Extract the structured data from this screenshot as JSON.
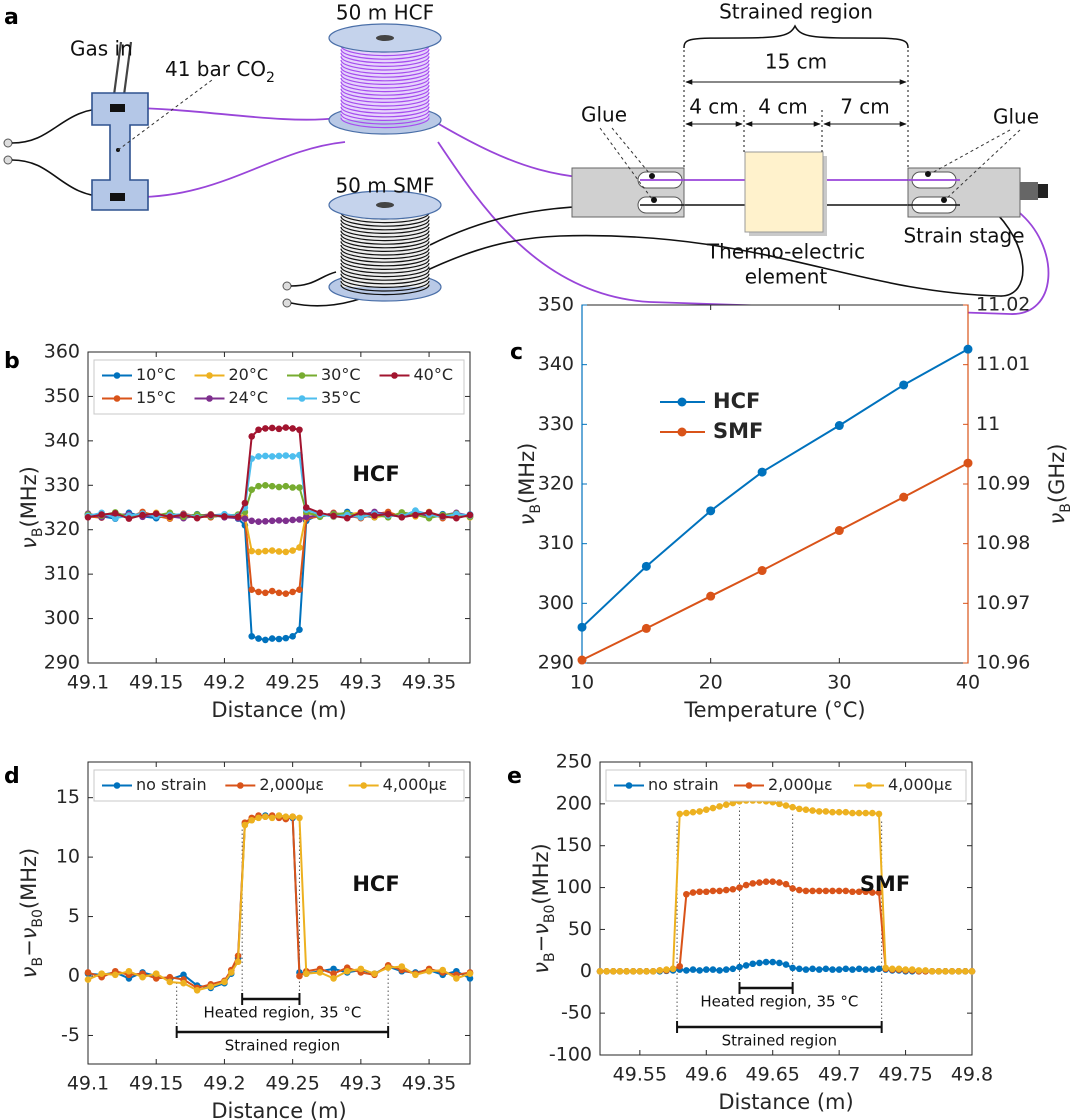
{
  "diagram": {
    "panel": "a",
    "gas_in": "Gas in",
    "pressure": [
      "41 bar CO",
      "2"
    ],
    "hcf_spool": "50 m HCF",
    "smf_spool": "50 m SMF",
    "strained_region": "Strained region",
    "lengths": [
      "15 cm",
      "4 cm",
      "4 cm",
      "7 cm"
    ],
    "glue": [
      "Glue",
      "Glue"
    ],
    "element": [
      "Thermo-electric",
      "element"
    ],
    "stage": "Strain stage"
  },
  "chart_data": [
    {
      "panel": "b",
      "type": "line",
      "x": [
        49.1,
        49.11,
        49.12,
        49.13,
        49.14,
        49.15,
        49.16,
        49.17,
        49.18,
        49.19,
        49.2,
        49.21,
        49.215,
        49.22,
        49.225,
        49.23,
        49.235,
        49.24,
        49.245,
        49.25,
        49.255,
        49.26,
        49.27,
        49.28,
        49.29,
        49.3,
        49.31,
        49.32,
        49.33,
        49.34,
        49.35,
        49.36,
        49.37,
        49.38
      ],
      "series": [
        {
          "name": "10°C",
          "color": "#0072bd",
          "values": [
            323.5,
            323,
            322.5,
            323.8,
            323,
            322.6,
            323.4,
            322.8,
            323.5,
            322.9,
            323.2,
            322.5,
            321,
            296,
            295.5,
            295.2,
            295.5,
            295.4,
            295.6,
            296,
            297.5,
            322,
            323.5,
            323,
            324,
            323.2,
            322.8,
            323.6,
            323.1,
            324.2,
            323,
            323.5,
            322.7,
            323.4
          ]
        },
        {
          "name": "15°C",
          "color": "#d95319",
          "values": [
            323,
            322.7,
            323.5,
            322.8,
            324,
            323.1,
            322.5,
            323.6,
            323,
            322.8,
            323.4,
            323.2,
            322.8,
            306.5,
            306,
            305.8,
            306.2,
            305.8,
            305.6,
            306,
            306.5,
            322.5,
            323,
            323.8,
            323.2,
            322.6,
            323.5,
            324,
            322.9,
            323.3,
            323.8,
            322.6,
            323.2,
            323
          ]
        },
        {
          "name": "20°C",
          "color": "#edb120",
          "values": [
            323.2,
            323.6,
            322.9,
            323.3,
            323,
            323.8,
            322.7,
            323.2,
            323.1,
            323.5,
            322.9,
            323.3,
            323,
            315.2,
            315,
            315.2,
            315.3,
            315.1,
            315,
            315.3,
            316,
            323.5,
            323.6,
            322.9,
            323.4,
            323.9,
            322.8,
            323.2,
            323.5,
            323,
            324,
            322.9,
            323.4,
            322.8
          ]
        },
        {
          "name": "24°C",
          "color": "#7e2f8e",
          "values": [
            323.6,
            322.8,
            323.3,
            323.5,
            322.9,
            323.4,
            323,
            322.6,
            323.2,
            323.4,
            322.8,
            322.6,
            322.5,
            322,
            321.8,
            321.9,
            322,
            322.1,
            322,
            322.2,
            322.3,
            322.9,
            323.2,
            323.6,
            322.7,
            323.3,
            324,
            323.4,
            322.9,
            323.6,
            323.1,
            323.3,
            323.8,
            323.1
          ]
        },
        {
          "name": "30°C",
          "color": "#77ac30",
          "values": [
            323.4,
            323.2,
            323.9,
            322.9,
            323.5,
            323.2,
            323.8,
            322.9,
            323.4,
            323,
            323.2,
            323.4,
            324,
            329,
            329.8,
            330,
            329.8,
            329.6,
            329.8,
            329.5,
            329.5,
            324,
            322.9,
            323.5,
            323.7,
            323,
            323.4,
            322.8,
            323.9,
            323.4,
            322.6,
            323.3,
            323.6,
            322.9
          ]
        },
        {
          "name": "35°C",
          "color": "#4dbeee",
          "values": [
            323.1,
            323.8,
            322.6,
            323.2,
            323.6,
            323,
            323.3,
            323.5,
            322.8,
            323.2,
            323.5,
            323.1,
            325,
            336,
            336.5,
            336.6,
            336.5,
            336.6,
            336.7,
            336.5,
            336.8,
            324.5,
            323.4,
            323,
            323.3,
            322.8,
            323.6,
            323.2,
            323,
            324.3,
            323.4,
            322.9,
            323.5,
            323.2
          ]
        },
        {
          "name": "40°C",
          "color": "#a2142f",
          "values": [
            322.8,
            323.4,
            323.7,
            322.5,
            323.3,
            323.6,
            322.9,
            323.4,
            322.6,
            323.3,
            323,
            322.9,
            326,
            341,
            342.5,
            342.8,
            342.9,
            342.7,
            343,
            342.8,
            342.5,
            325,
            323.8,
            323.1,
            322.6,
            323.9,
            323.2,
            323.5,
            322.8,
            323.3,
            323.9,
            323,
            322.6,
            323.3
          ]
        }
      ],
      "xlim": [
        49.1,
        49.38
      ],
      "xticks": [
        49.1,
        49.15,
        49.2,
        49.25,
        49.3,
        49.35
      ],
      "ylim": [
        290,
        360
      ],
      "yticks": [
        290,
        300,
        310,
        320,
        330,
        340,
        350,
        360
      ],
      "xlabel": "Distance (m)",
      "ylabel": [
        "ν",
        "B",
        "(MHz)"
      ],
      "label": "HCF",
      "legend": "north",
      "legend_columns": 4
    },
    {
      "panel": "c",
      "type": "line",
      "x": [
        10,
        15,
        20,
        24,
        30,
        35,
        40
      ],
      "series": [
        {
          "name": "HCF",
          "color": "#0072bd",
          "values": [
            296,
            306.2,
            315.5,
            322,
            329.8,
            336.6,
            342.6
          ]
        },
        {
          "name": "SMF",
          "color": "#d95319",
          "axis": "y2",
          "values": [
            10.9605,
            10.9658,
            10.9712,
            10.9755,
            10.9822,
            10.9878,
            10.9935
          ]
        }
      ],
      "xlim": [
        10,
        40
      ],
      "xticks": [
        10,
        20,
        30,
        40
      ],
      "ylim": [
        290,
        350
      ],
      "yticks": [
        290,
        300,
        310,
        320,
        330,
        340,
        350
      ],
      "y2lim": [
        10.96,
        11.02
      ],
      "y2ticks": [
        10.96,
        10.97,
        10.98,
        10.99,
        11,
        11.01,
        11.02
      ],
      "xlabel": "Temperature (°C)",
      "ylabel": [
        "ν",
        "B",
        "(MHz)"
      ],
      "y2label": [
        "ν",
        "B",
        "(GHz)"
      ],
      "ycolor": "#0072bd",
      "y2color": "#d95319",
      "legend": "northwest"
    },
    {
      "panel": "d",
      "type": "line",
      "x": [
        49.1,
        49.11,
        49.12,
        49.13,
        49.14,
        49.15,
        49.16,
        49.17,
        49.18,
        49.19,
        49.2,
        49.205,
        49.21,
        49.215,
        49.22,
        49.225,
        49.23,
        49.235,
        49.24,
        49.245,
        49.25,
        49.255,
        49.26,
        49.27,
        49.28,
        49.29,
        49.3,
        49.31,
        49.32,
        49.33,
        49.34,
        49.35,
        49.36,
        49.37,
        49.38
      ],
      "series": [
        {
          "name": "no strain",
          "color": "#0072bd",
          "values": [
            0.2,
            0.1,
            0.3,
            -0.2,
            0.3,
            0,
            -0.3,
            0.1,
            -0.8,
            -1,
            -0.6,
            0.2,
            1.5,
            12.8,
            13.2,
            13.4,
            13.5,
            13.4,
            13.4,
            13.3,
            13.3,
            0.3,
            0.2,
            0.4,
            0.6,
            0.3,
            0.5,
            0.2,
            0.8,
            0.4,
            0.3,
            0.5,
            0.1,
            0.4,
            -0.2
          ]
        },
        {
          "name": "2,000με",
          "color": "#d95319",
          "values": [
            0.3,
            -0.1,
            0.4,
            0.1,
            0.2,
            -0.2,
            -0.1,
            -0.3,
            -1,
            -0.7,
            -0.4,
            0.5,
            1.7,
            12.9,
            13.3,
            13.5,
            13.4,
            13.5,
            13.3,
            13.2,
            13.4,
            0,
            0.4,
            0.6,
            0.2,
            0.7,
            0.3,
            0.1,
            0.9,
            0.5,
            0.2,
            0.6,
            0.3,
            0.1,
            0.3
          ]
        },
        {
          "name": "4,000με",
          "color": "#edb120",
          "values": [
            -0.3,
            0.2,
            0.1,
            0.4,
            -0.1,
            0.2,
            -0.5,
            -0.6,
            -1.2,
            -0.9,
            -0.5,
            0.3,
            1.2,
            12.7,
            13.1,
            13.3,
            13.4,
            13.3,
            13.5,
            13.4,
            13.4,
            13.3,
            0.2,
            0.3,
            -0.2,
            0.4,
            0.6,
            0.2,
            0.7,
            0.8,
            0.1,
            0.4,
            0.5,
            -0.2,
            0.2
          ]
        }
      ],
      "xlim": [
        49.1,
        49.38
      ],
      "xticks": [
        49.1,
        49.15,
        49.2,
        49.25,
        49.3,
        49.35
      ],
      "ylim": [
        -7.4,
        18
      ],
      "yticks": [
        -5,
        0,
        5,
        10,
        15
      ],
      "xlabel": "Distance (m)",
      "ylabel": [
        "ν",
        "B",
        "−ν",
        "B0",
        "(MHz)"
      ],
      "label": "HCF",
      "legend": "north",
      "legend_columns": 3,
      "regions": [
        {
          "label": "Heated region, 35 °C",
          "x": [
            49.213,
            49.255
          ]
        },
        {
          "label": "Strained region",
          "x": [
            49.165,
            49.32
          ]
        }
      ]
    },
    {
      "panel": "e",
      "type": "line",
      "x": [
        49.52,
        49.525,
        49.53,
        49.535,
        49.54,
        49.545,
        49.55,
        49.555,
        49.56,
        49.565,
        49.57,
        49.575,
        49.58,
        49.585,
        49.59,
        49.595,
        49.6,
        49.605,
        49.61,
        49.615,
        49.62,
        49.625,
        49.63,
        49.635,
        49.64,
        49.645,
        49.65,
        49.655,
        49.66,
        49.665,
        49.67,
        49.675,
        49.68,
        49.685,
        49.69,
        49.695,
        49.7,
        49.705,
        49.71,
        49.715,
        49.72,
        49.725,
        49.73,
        49.735,
        49.74,
        49.745,
        49.75,
        49.755,
        49.76,
        49.765,
        49.77,
        49.775,
        49.78,
        49.785,
        49.79,
        49.795,
        49.8
      ],
      "series": [
        {
          "name": "no strain",
          "color": "#0072bd",
          "values": [
            0,
            0,
            0,
            0,
            0,
            0,
            0,
            0,
            0,
            0,
            0.5,
            1,
            2,
            1,
            2,
            1,
            2,
            2,
            1,
            2,
            3,
            5,
            7,
            9,
            10,
            11,
            11,
            10,
            8,
            4,
            3,
            2,
            3,
            2,
            3,
            2,
            2,
            3,
            2,
            3,
            2,
            2,
            3,
            2,
            1,
            1,
            0,
            0,
            0,
            0,
            0,
            0,
            0,
            0,
            0,
            0,
            0
          ]
        },
        {
          "name": "2,000με",
          "color": "#d95319",
          "values": [
            0,
            0,
            0,
            0,
            0,
            0,
            0,
            0,
            0,
            1,
            1,
            3,
            6,
            92,
            94,
            95,
            95,
            96,
            96,
            97,
            98,
            100,
            103,
            105,
            106,
            107,
            107,
            106,
            104,
            99,
            97,
            96,
            96,
            96,
            96,
            96,
            96,
            96,
            95,
            95,
            95,
            94,
            94,
            3,
            2,
            2,
            1,
            1,
            0,
            0,
            0,
            0,
            0,
            0,
            0,
            0,
            0
          ]
        },
        {
          "name": "4,000με",
          "color": "#edb120",
          "values": [
            0,
            0,
            0,
            0,
            0,
            0,
            0,
            0,
            0,
            1,
            2,
            3,
            188,
            189,
            190,
            191,
            193,
            195,
            197,
            199,
            201,
            203,
            204,
            204,
            204,
            203,
            202,
            200,
            198,
            196,
            194,
            193,
            192,
            191,
            191,
            190,
            190,
            190,
            189,
            189,
            189,
            189,
            188,
            4,
            3,
            3,
            2,
            2,
            1,
            1,
            0,
            0,
            0,
            0,
            0,
            0,
            0
          ]
        }
      ],
      "xlim": [
        49.52,
        49.8
      ],
      "xticks": [
        49.55,
        49.6,
        49.65,
        49.7,
        49.75,
        49.8
      ],
      "ylim": [
        -100,
        250
      ],
      "yticks": [
        -100,
        -50,
        0,
        50,
        100,
        150,
        200,
        250
      ],
      "xlabel": "Distance (m)",
      "ylabel": [
        "ν",
        "B",
        "−ν",
        "B0",
        "(MHz)"
      ],
      "label": "SMF",
      "legend": "north",
      "legend_columns": 3,
      "regions": [
        {
          "label": "Heated region, 35 °C",
          "x": [
            49.625,
            49.665
          ]
        },
        {
          "label": "Strained region",
          "x": [
            49.578,
            49.732
          ]
        }
      ]
    }
  ]
}
